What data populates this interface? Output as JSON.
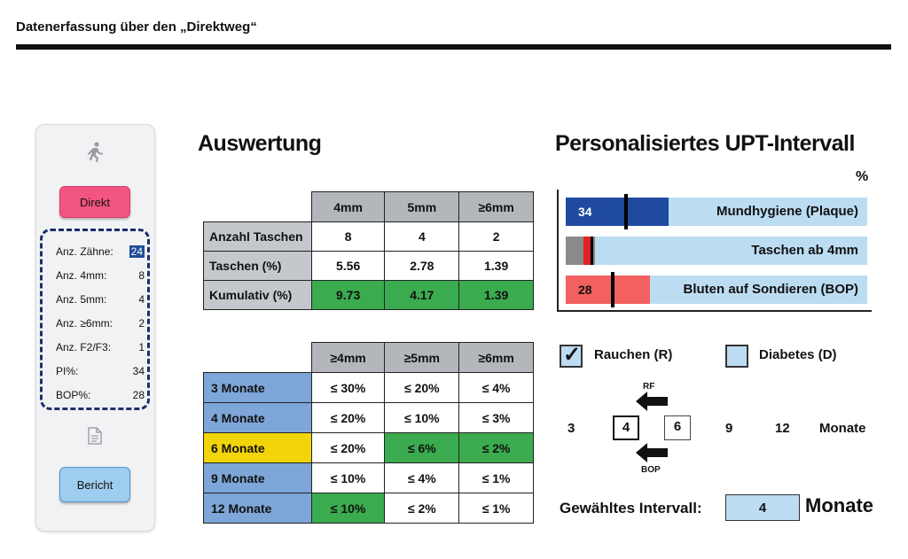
{
  "header": {
    "title": "Datenerfassung über den „Direktweg“"
  },
  "sidebar": {
    "icons": [
      "running-person-icon",
      "document-icon"
    ],
    "direkt_label": "Direkt",
    "bericht_label": "Bericht",
    "stats": [
      {
        "label": "Anz. Zähne:",
        "value": "24"
      },
      {
        "label": "Anz. 4mm:",
        "value": "8"
      },
      {
        "label": "Anz. 5mm:",
        "value": "4"
      },
      {
        "label": "Anz. ≥6mm:",
        "value": "2"
      },
      {
        "label": "Anz. F2/F3:",
        "value": "1"
      },
      {
        "label": "PI%:",
        "value": "34"
      },
      {
        "label": "BOP%:",
        "value": "28"
      }
    ]
  },
  "auswertung": {
    "title": "Auswertung",
    "table1": {
      "headers": [
        "4mm",
        "5mm",
        "≥6mm"
      ],
      "rows": [
        {
          "label": "Anzahl Taschen",
          "cells": [
            "8",
            "4",
            "2"
          ]
        },
        {
          "label": "Taschen (%)",
          "cells": [
            "5.56",
            "2.78",
            "1.39"
          ]
        },
        {
          "label": "Kumulativ (%)",
          "cells": [
            "9.73",
            "4.17",
            "1.39"
          ]
        }
      ]
    },
    "table2": {
      "headers": [
        "≥4mm",
        "≥5mm",
        "≥6mm"
      ],
      "rows": [
        {
          "label": "3 Monate",
          "cells": [
            "≤ 30%",
            "≤ 20%",
            "≤ 4%"
          ]
        },
        {
          "label": "4 Monate",
          "cells": [
            "≤ 20%",
            "≤ 10%",
            "≤ 3%"
          ]
        },
        {
          "label": "6 Monate",
          "cells": [
            "≤ 20%",
            "≤ 6%",
            "≤ 2%"
          ]
        },
        {
          "label": "9 Monate",
          "cells": [
            "≤ 10%",
            "≤ 4%",
            "≤ 1%"
          ]
        },
        {
          "label": "12 Monate",
          "cells": [
            "≤ 10%",
            "≤ 2%",
            "≤ 1%"
          ]
        }
      ]
    },
    "colors": {
      "header_gray": "#b3b6ba",
      "row_blue": "#7ea6d8",
      "highlight_yellow": "#f1d40a",
      "match_green": "#3bab4f"
    }
  },
  "upt": {
    "title": "Personalisiertes UPT-Intervall",
    "unit": "%",
    "bars": [
      {
        "label": "Mundhygiene (Plaque)",
        "value": "34",
        "level": 34,
        "color": "#1f4aa0",
        "text_color": "#ffffff"
      },
      {
        "label": "Taschen ab 4mm",
        "value": "",
        "level": 9.73,
        "color": "#8a8a8a",
        "text_color": "#111111"
      },
      {
        "label": "Bluten auf Sondieren (BOP)",
        "value": "28",
        "level": 28,
        "color": "#f2605f",
        "text_color": "#111111"
      }
    ],
    "rauchen_label": "Rauchen (R)",
    "rauchen_checked": true,
    "check_mark": "✓",
    "diabetes_label": "Diabetes (D)",
    "diabetes_checked": false,
    "rf_label": "RF",
    "bop_label": "BOP",
    "scale": {
      "n3": "3",
      "n4": "4",
      "n6": "6",
      "n9": "9",
      "n12": "12",
      "unit": "Monate"
    },
    "gewaehlt_label": "Gewähltes Intervall:",
    "gewaehlt_value": "4",
    "gewaehlt_unit": "Monate"
  }
}
